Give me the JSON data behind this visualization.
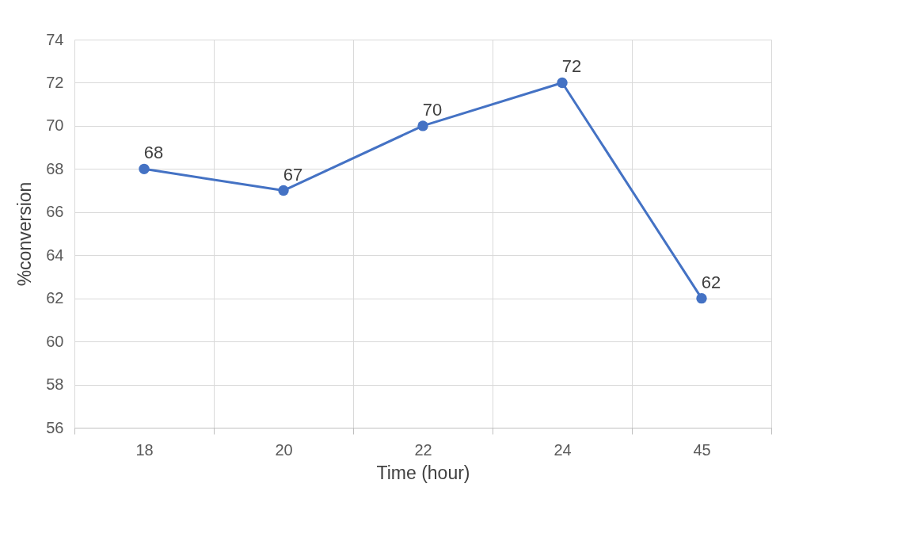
{
  "chart_data": {
    "type": "line",
    "xlabel": "Time (hour)",
    "ylabel": "%conversion",
    "categories": [
      "18",
      "20",
      "22",
      "24",
      "45"
    ],
    "series": [
      {
        "color": "#4472c4",
        "values": [
          68,
          67,
          70,
          72,
          62
        ]
      }
    ],
    "ylim": [
      56,
      74
    ],
    "yticks": [
      56,
      58,
      60,
      62,
      64,
      66,
      68,
      70,
      72,
      74
    ],
    "grid": true,
    "marker": "circle",
    "data_labels": true
  }
}
